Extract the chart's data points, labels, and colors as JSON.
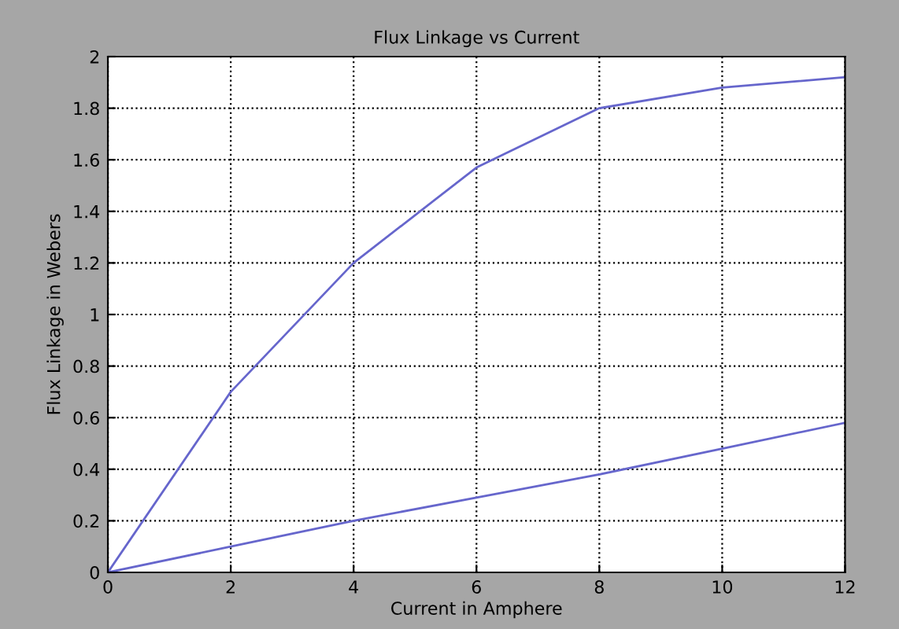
{
  "chart_data": {
    "type": "line",
    "title": "Flux Linkage vs Current",
    "xlabel": "Current in Amphere",
    "ylabel": "Flux Linkage in Webers",
    "x": [
      0,
      2,
      4,
      6,
      8,
      10,
      12
    ],
    "series": [
      {
        "color": "#6666cc",
        "values": [
          0,
          0.7,
          1.2,
          1.57,
          1.8,
          1.88,
          1.92
        ]
      },
      {
        "color": "#6666cc",
        "values": [
          0,
          0.1,
          0.2,
          0.29,
          0.38,
          0.48,
          0.58
        ]
      }
    ],
    "xlim": [
      0,
      12
    ],
    "xticks": [
      0,
      2,
      4,
      6,
      8,
      10,
      12
    ],
    "ylim": [
      0,
      2
    ],
    "yticks": [
      0,
      0.2,
      0.4,
      0.6,
      0.8,
      1,
      1.2,
      1.4,
      1.6,
      1.8,
      2
    ],
    "grid": true,
    "line_style": "solid",
    "marker": "none",
    "legend": false
  }
}
